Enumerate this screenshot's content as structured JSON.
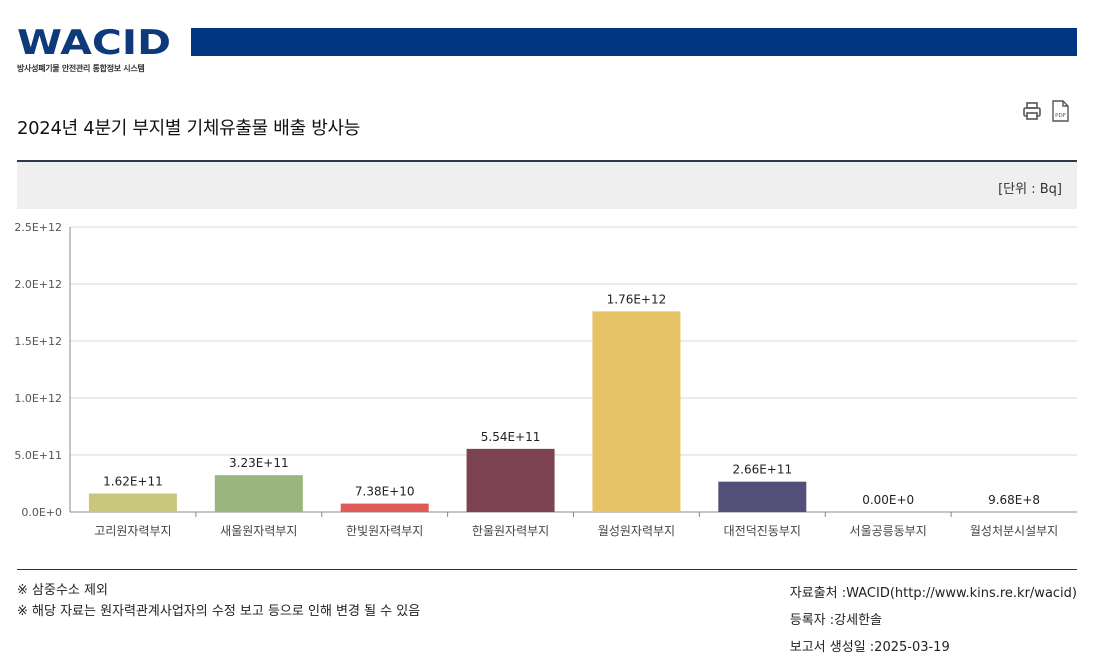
{
  "header": {
    "logo_text": "WACID",
    "logo_subtitle": "방사성폐기물 안전관리 통합정보 시스템"
  },
  "title": "2024년 4분기 부지별 기체유출물 배출 방사능",
  "toolbar": {
    "print_icon": "printer-icon",
    "pdf_icon": "pdf-icon",
    "pdf_label": "PDF"
  },
  "unit": "[단위 : Bq]",
  "notes": [
    "※ 삼중수소 제외",
    "※ 해당 자료는 원자력관계사업자의 수정 보고 등으로 인해 변경 될 수 있음"
  ],
  "meta": {
    "source": "자료출처 :WACID(http://www.kins.re.kr/wacid)",
    "registrant": "등록자 :강세한솔",
    "generated": "보고서 생성일 :2025-03-19"
  },
  "colors": {
    "brand": "#003581",
    "logo": "#0d3a7a"
  },
  "chart_data": {
    "type": "bar",
    "categories": [
      "고리원자력부지",
      "새울원자력부지",
      "한빛원자력부지",
      "한울원자력부지",
      "월성원자력부지",
      "대전덕진동부지",
      "서울공릉동부지",
      "월성처분시설부지"
    ],
    "values": [
      162000000000.0,
      323000000000.0,
      73800000000.0,
      554000000000.0,
      1760000000000.0,
      266000000000.0,
      0,
      968000000.0
    ],
    "data_labels": [
      "1.62E+11",
      "3.23E+11",
      "7.38E+10",
      "5.54E+11",
      "1.76E+12",
      "2.66E+11",
      "0.00E+0",
      "9.68E+8"
    ],
    "colors": [
      "#c9c77c",
      "#9ab67e",
      "#e05a5a",
      "#7c4251",
      "#e7c367",
      "#c9c77c",
      "#9ab67e",
      "#e05a5a"
    ],
    "bar_colors_shown": [
      "#c9c77c",
      "#9ab67e",
      "#e05a5a",
      "#7c4251",
      "#e7c367",
      "#544f78",
      "#cccccc",
      "#cccccc"
    ],
    "y_ticks": [
      "0.0E+0",
      "5.0E+11",
      "1.0E+12",
      "1.5E+12",
      "2.0E+12",
      "2.5E+12"
    ],
    "ylim": [
      0,
      2500000000000.0
    ],
    "grid": true
  }
}
